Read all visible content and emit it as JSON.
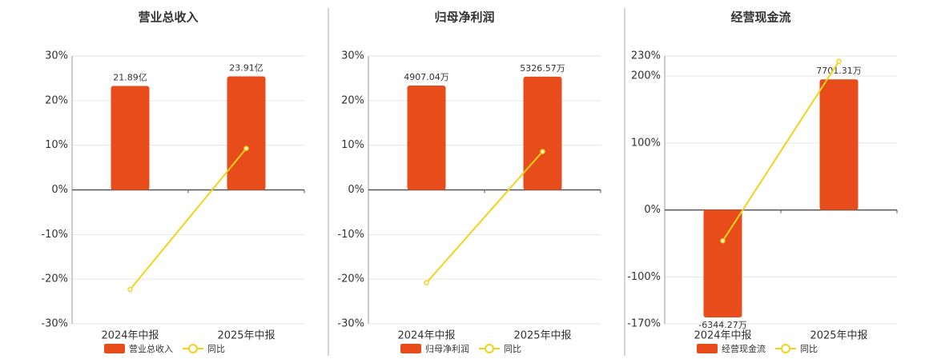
{
  "chart_data": [
    {
      "type": "bar-line",
      "title": "营业总收入",
      "categories": [
        "2024年中报",
        "2025年中报"
      ],
      "series": [
        {
          "name": "营业总收入",
          "type": "bar",
          "axis": "y2",
          "color": "#e84c1a",
          "values": [
            21.89,
            23.91
          ],
          "value_labels": [
            "21.89亿",
            "23.91亿"
          ]
        },
        {
          "name": "同比",
          "type": "line",
          "color": "#f2d31b",
          "values": [
            -22.3,
            9.3
          ]
        }
      ],
      "ylim": [
        -30,
        30
      ],
      "yticks": [
        {
          "value": -30,
          "label": "-30%"
        },
        {
          "value": -20,
          "label": "-20%"
        },
        {
          "value": -10,
          "label": "-10%"
        },
        {
          "value": 0,
          "label": "0%"
        },
        {
          "value": 10,
          "label": "10%"
        },
        {
          "value": 20,
          "label": "20%"
        },
        {
          "value": 30,
          "label": "30%"
        }
      ],
      "y2lim": [
        -28.2,
        28.2
      ],
      "grid": true
    },
    {
      "type": "bar-line",
      "title": "归母净利润",
      "categories": [
        "2024年中报",
        "2025年中报"
      ],
      "series": [
        {
          "name": "归母净利润",
          "type": "bar",
          "axis": "y2",
          "color": "#e84c1a",
          "values": [
            4907.04,
            5326.57
          ],
          "value_labels": [
            "4907.04万",
            "5326.57万"
          ]
        },
        {
          "name": "同比",
          "type": "line",
          "color": "#f2d31b",
          "values": [
            -20.8,
            8.6
          ]
        }
      ],
      "ylim": [
        -30,
        30
      ],
      "yticks": [
        {
          "value": -30,
          "label": "-30%"
        },
        {
          "value": -20,
          "label": "-20%"
        },
        {
          "value": -10,
          "label": "-10%"
        },
        {
          "value": 0,
          "label": "0%"
        },
        {
          "value": 10,
          "label": "10%"
        },
        {
          "value": 20,
          "label": "20%"
        },
        {
          "value": 30,
          "label": "30%"
        }
      ],
      "y2lim": [
        -6300,
        6300
      ],
      "grid": true
    },
    {
      "type": "bar-line",
      "title": "经营现金流",
      "categories": [
        "2024年中报",
        "2025年中报"
      ],
      "series": [
        {
          "name": "经营现金流",
          "type": "bar",
          "axis": "y2",
          "color": "#e84c1a",
          "values": [
            -6344.27,
            7701.31
          ],
          "value_labels": [
            "-6344.27万",
            "7701.31万"
          ]
        },
        {
          "name": "同比",
          "type": "line",
          "color": "#f2d31b",
          "values": [
            -46,
            222
          ]
        }
      ],
      "ylim": [
        -170,
        230
      ],
      "yticks": [
        {
          "value": -170,
          "label": "-170%"
        },
        {
          "value": -100,
          "label": "-100%"
        },
        {
          "value": 0,
          "label": "0%"
        },
        {
          "value": 100,
          "label": "100%"
        },
        {
          "value": 200,
          "label": "200%"
        },
        {
          "value": 230,
          "label": "230%"
        }
      ],
      "y2lim": [
        -6720,
        9080
      ],
      "grid": true
    }
  ]
}
